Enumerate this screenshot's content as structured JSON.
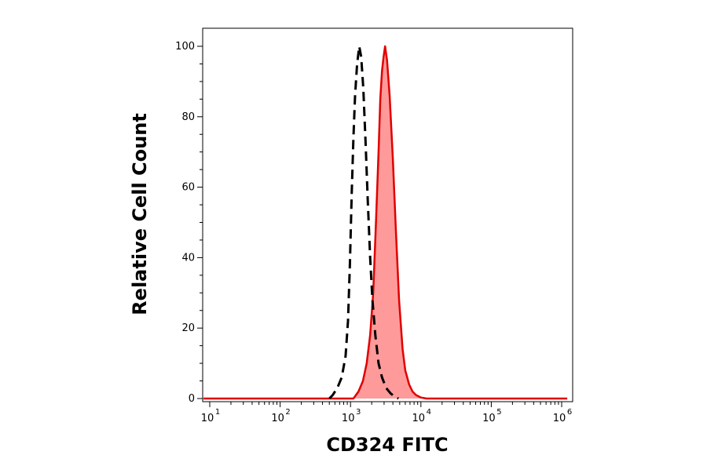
{
  "chart_data": {
    "type": "area",
    "title": "",
    "xlabel": "CD324 FITC",
    "ylabel": "Relative Cell Count",
    "x_scale": "log",
    "xlim": [
      10,
      1000000
    ],
    "ylim": [
      0,
      100
    ],
    "grid": false,
    "x_ticks": [
      {
        "value": 10,
        "base": "10",
        "exp": "1"
      },
      {
        "value": 100,
        "base": "10",
        "exp": "2"
      },
      {
        "value": 1000,
        "base": "10",
        "exp": "3"
      },
      {
        "value": 10000,
        "base": "10",
        "exp": "4"
      },
      {
        "value": 100000,
        "base": "10",
        "exp": "5"
      },
      {
        "value": 1000000,
        "base": "10",
        "exp": "6"
      }
    ],
    "y_ticks": [
      {
        "value": 0,
        "label": "0"
      },
      {
        "value": 20,
        "label": "20"
      },
      {
        "value": 40,
        "label": "40"
      },
      {
        "value": 60,
        "label": "60"
      },
      {
        "value": 80,
        "label": "80"
      },
      {
        "value": 100,
        "label": "100"
      }
    ],
    "series": [
      {
        "style": "filled-solid",
        "color": "#e00000",
        "fill": "#ff9a9a",
        "points": [
          [
            6,
            0
          ],
          [
            500,
            0
          ],
          [
            1100,
            0
          ],
          [
            1300,
            2
          ],
          [
            1500,
            5
          ],
          [
            1700,
            10
          ],
          [
            1900,
            18
          ],
          [
            2100,
            30
          ],
          [
            2300,
            50
          ],
          [
            2500,
            70
          ],
          [
            2650,
            85
          ],
          [
            2800,
            93
          ],
          [
            2950,
            97
          ],
          [
            3100,
            100
          ],
          [
            3300,
            96
          ],
          [
            3600,
            86
          ],
          [
            4000,
            68
          ],
          [
            4400,
            48
          ],
          [
            4900,
            28
          ],
          [
            5500,
            14
          ],
          [
            6000,
            8
          ],
          [
            6800,
            4
          ],
          [
            7600,
            2
          ],
          [
            8500,
            1
          ],
          [
            10000,
            0.3
          ],
          [
            12000,
            0
          ],
          [
            1200000,
            0
          ]
        ]
      },
      {
        "style": "dashed",
        "color": "#000000",
        "fill": "none",
        "points": [
          [
            500,
            0
          ],
          [
            560,
            1
          ],
          [
            650,
            3
          ],
          [
            750,
            6
          ],
          [
            850,
            12
          ],
          [
            920,
            22
          ],
          [
            980,
            38
          ],
          [
            1040,
            58
          ],
          [
            1100,
            74
          ],
          [
            1160,
            86
          ],
          [
            1240,
            95
          ],
          [
            1330,
            100
          ],
          [
            1420,
            97
          ],
          [
            1520,
            88
          ],
          [
            1640,
            72
          ],
          [
            1760,
            56
          ],
          [
            1900,
            40
          ],
          [
            2050,
            28
          ],
          [
            2250,
            18
          ],
          [
            2500,
            10
          ],
          [
            2800,
            6
          ],
          [
            3200,
            3
          ],
          [
            3700,
            1.5
          ],
          [
            4200,
            0.6
          ],
          [
            4800,
            0
          ]
        ]
      }
    ]
  }
}
